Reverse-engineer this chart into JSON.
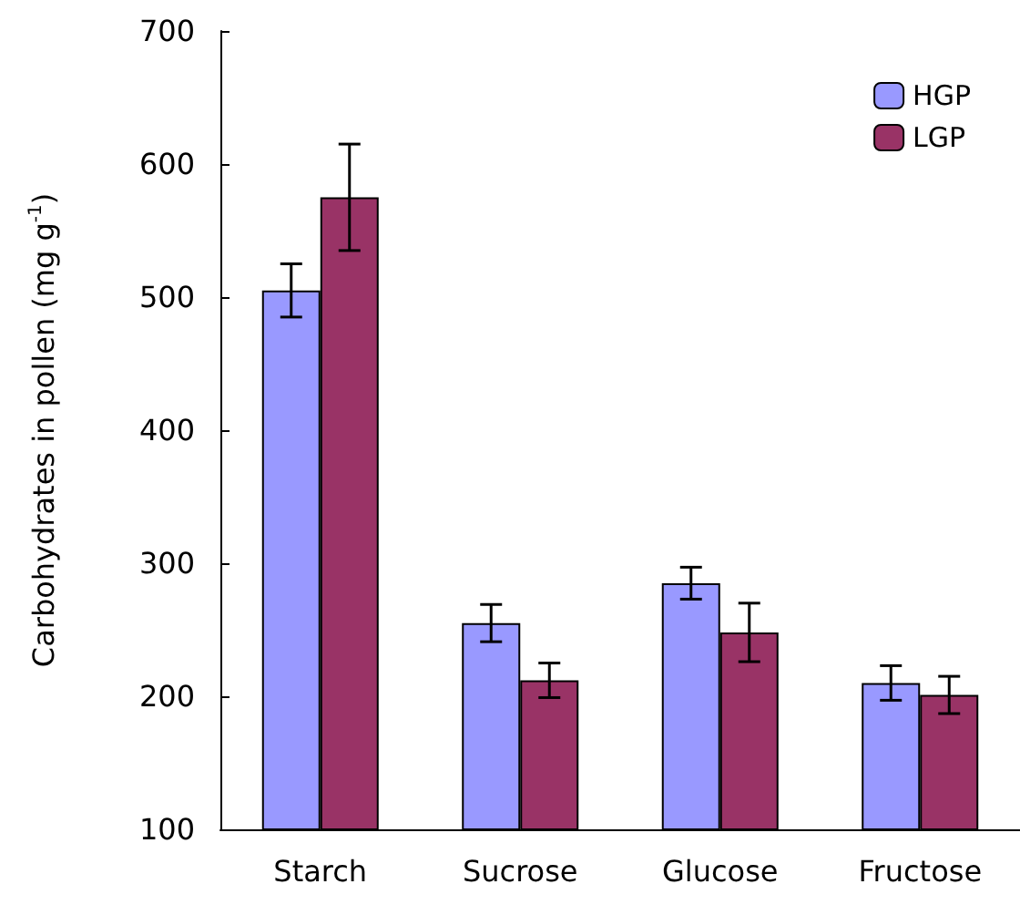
{
  "chart_data": {
    "type": "bar",
    "ylabel": "Carbohydrates in pollen (mg g$^{-1}$)",
    "categories": [
      "Starch",
      "Sucrose",
      "Glucose",
      "Fructose"
    ],
    "series": [
      {
        "name": "HGP",
        "color": "#9999ff",
        "values": [
          505,
          255,
          285,
          210
        ],
        "errors": [
          20,
          14,
          12,
          13
        ]
      },
      {
        "name": "LGP",
        "color": "#993366",
        "values": [
          575,
          212,
          248,
          201
        ],
        "errors": [
          40,
          13,
          22,
          14
        ]
      }
    ],
    "ylim": [
      100,
      700
    ],
    "yticks": [
      100,
      200,
      300,
      400,
      500,
      600,
      700
    ],
    "grid": false,
    "legend": "top right"
  }
}
